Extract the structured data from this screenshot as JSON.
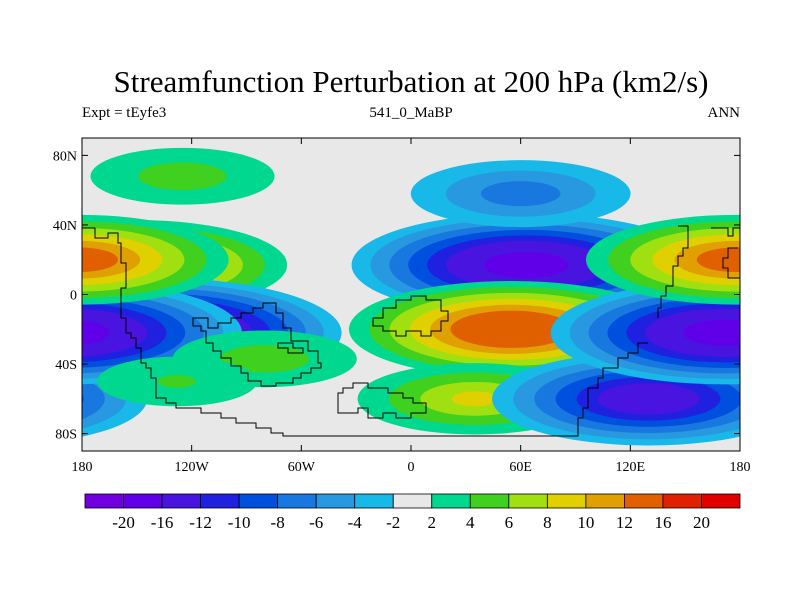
{
  "chart_data": {
    "type": "heatmap",
    "title": "Streamfunction Perturbation at 200 hPa (km2/s)",
    "left_string": "Expt = tEyfe3",
    "center_string": "541_0_MaBP",
    "right_string": "ANN",
    "x_range": [
      -180,
      180
    ],
    "y_range": [
      -90,
      90
    ],
    "x_ticks": [
      {
        "value": -180,
        "label": "180"
      },
      {
        "value": -120,
        "label": "120W"
      },
      {
        "value": -60,
        "label": "60W"
      },
      {
        "value": 0,
        "label": "0"
      },
      {
        "value": 60,
        "label": "60E"
      },
      {
        "value": 120,
        "label": "120E"
      },
      {
        "value": 180,
        "label": "180"
      }
    ],
    "y_ticks": [
      {
        "value": 80,
        "label": "80N"
      },
      {
        "value": 40,
        "label": "40N"
      },
      {
        "value": 0,
        "label": "0"
      },
      {
        "value": -40,
        "label": "40S"
      },
      {
        "value": -80,
        "label": "80S"
      }
    ],
    "contour_levels": [
      -20,
      -16,
      -12,
      -10,
      -8,
      -6,
      -4,
      -2,
      2,
      4,
      6,
      8,
      10,
      12,
      16,
      20
    ],
    "colorbar_labels": [
      "-20",
      "-16",
      "-12",
      "-10",
      "-8",
      "-6",
      "-4",
      "-2",
      "2",
      "4",
      "6",
      "8",
      "10",
      "12",
      "16",
      "20"
    ],
    "colors": [
      "#7000e0",
      "#6000e8",
      "#4a14e0",
      "#2020e0",
      "#0050e0",
      "#1878e0",
      "#2898e0",
      "#18b8e8",
      "#e8e8e8",
      "#00d890",
      "#40d020",
      "#a0e010",
      "#e0d000",
      "#e0a000",
      "#e06000",
      "#e02000",
      "#e00000"
    ],
    "field_centers": [
      {
        "lon": -150,
        "lat": 17,
        "value": 13
      },
      {
        "lon": -140,
        "lat": -22,
        "value": -19
      },
      {
        "lon": -125,
        "lat": 68,
        "value": 5
      },
      {
        "lon": 63,
        "lat": 17,
        "value": -17
      },
      {
        "lon": 60,
        "lat": 58,
        "value": -7
      },
      {
        "lon": 55,
        "lat": -20,
        "value": 15
      },
      {
        "lon": 35,
        "lat": -60,
        "value": 8
      },
      {
        "lon": 130,
        "lat": -60,
        "value": -14
      },
      {
        "lon": 172,
        "lat": -22,
        "value": -17
      },
      {
        "lon": 178,
        "lat": 20,
        "value": 13
      },
      {
        "lon": -80,
        "lat": -37,
        "value": 5
      },
      {
        "lon": -128,
        "lat": -50,
        "value": 4
      }
    ]
  }
}
